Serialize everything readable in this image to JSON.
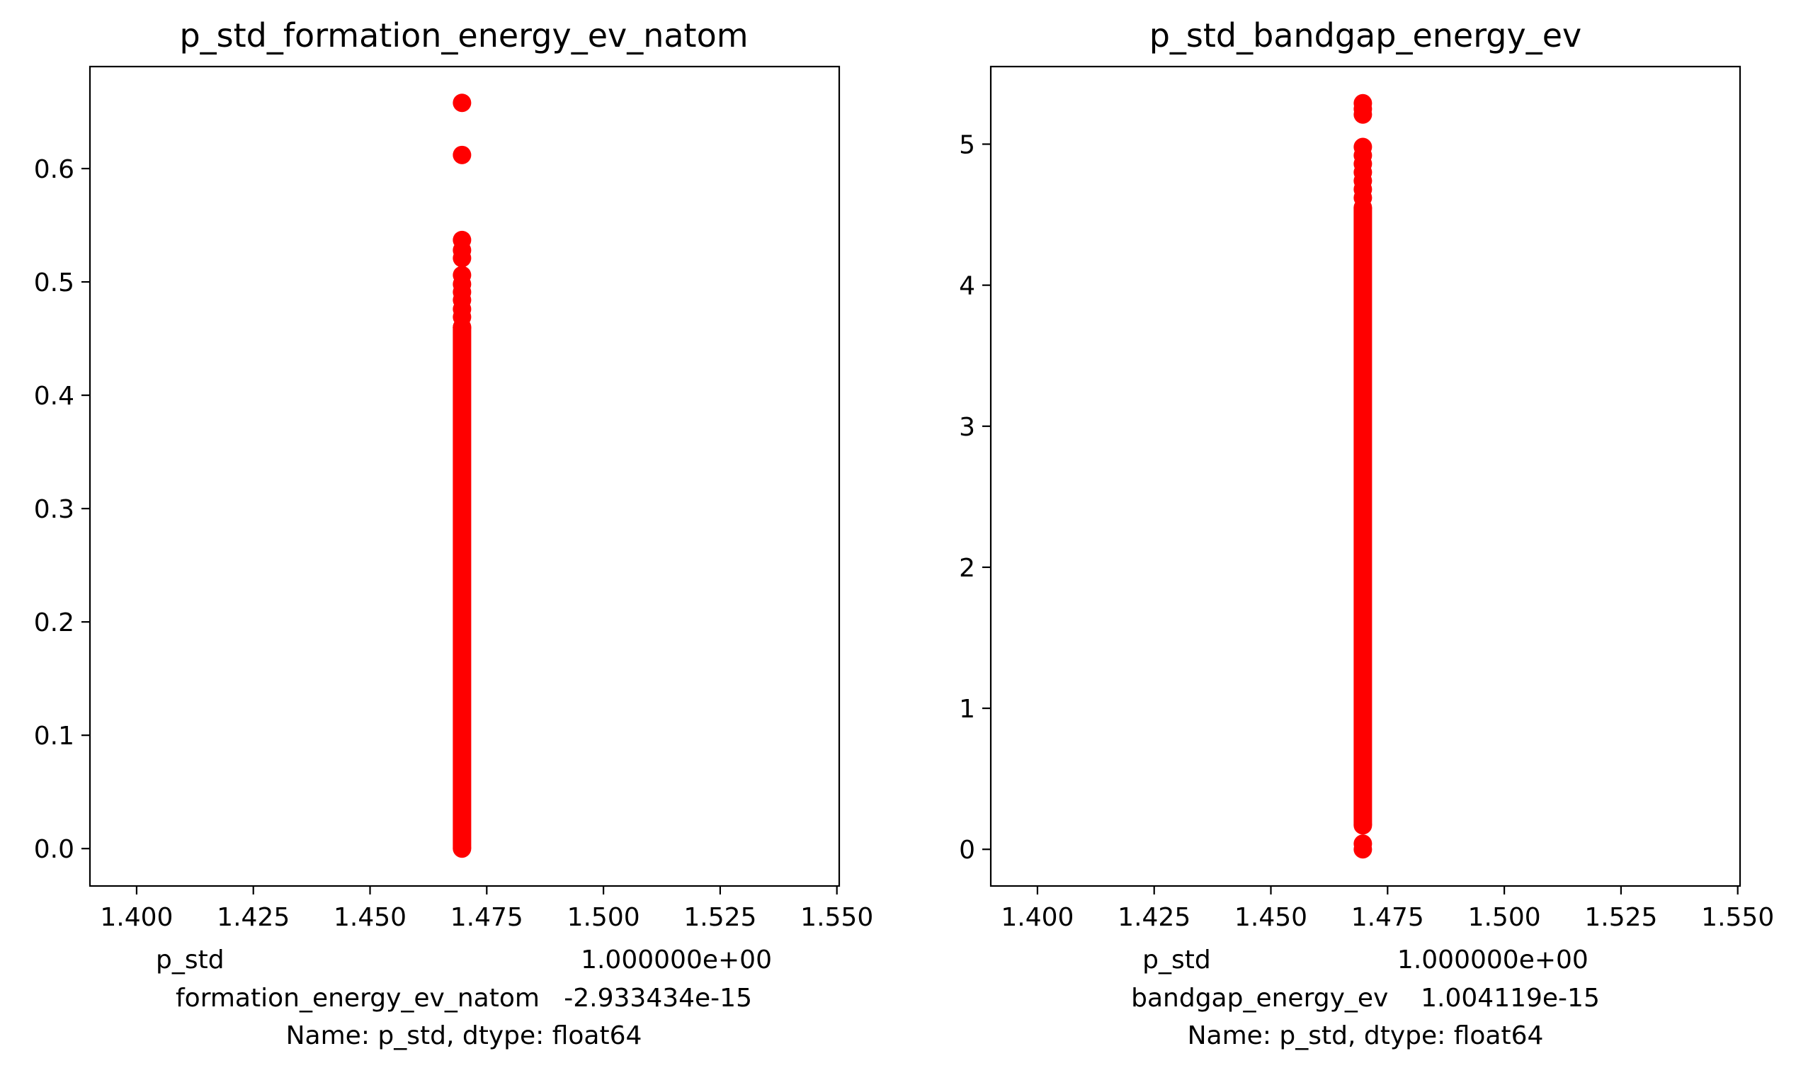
{
  "chart_data": [
    {
      "type": "scatter",
      "title": "p_std_formation_energy_ev_natom",
      "xlabel_lines": [
        "p_std                                            1.000000e+00",
        "formation_energy_ev_natom   -2.933434e-15",
        "Name: p_std, dtype: float64"
      ],
      "xlim": [
        1.39,
        1.5505
      ],
      "ylim": [
        -0.033,
        0.69
      ],
      "xticks": [
        1.4,
        1.425,
        1.45,
        1.475,
        1.5,
        1.525,
        1.55
      ],
      "xtick_labels": [
        "1.400",
        "1.425",
        "1.450",
        "1.475",
        "1.500",
        "1.525",
        "1.550"
      ],
      "yticks": [
        0.0,
        0.1,
        0.2,
        0.3,
        0.4,
        0.5,
        0.6
      ],
      "ytick_labels": [
        "0.0",
        "0.1",
        "0.2",
        "0.3",
        "0.4",
        "0.5",
        "0.6"
      ],
      "marker_color": "#ff0000",
      "x_value": 1.4697,
      "dense_range": [
        0.0,
        0.46
      ],
      "y_values": [
        0.658,
        0.612,
        0.537,
        0.528,
        0.521,
        0.506,
        0.498,
        0.491,
        0.484,
        0.476,
        0.469,
        0.46
      ]
    },
    {
      "type": "scatter",
      "title": "p_std_bandgap_energy_ev",
      "xlabel_lines": [
        "p_std                       1.000000e+00",
        "bandgap_energy_ev    1.004119e-15",
        "Name: p_std, dtype: float64"
      ],
      "xlim": [
        1.39,
        1.5505
      ],
      "ylim": [
        -0.26,
        5.55
      ],
      "xticks": [
        1.4,
        1.425,
        1.45,
        1.475,
        1.5,
        1.525,
        1.55
      ],
      "xtick_labels": [
        "1.400",
        "1.425",
        "1.450",
        "1.475",
        "1.500",
        "1.525",
        "1.550"
      ],
      "yticks": [
        0,
        1,
        2,
        3,
        4,
        5
      ],
      "ytick_labels": [
        "0",
        "1",
        "2",
        "3",
        "4",
        "5"
      ],
      "marker_color": "#ff0000",
      "x_value": 1.4697,
      "dense_range": [
        0.17,
        4.55
      ],
      "y_values": [
        5.29,
        5.25,
        5.21,
        4.98,
        4.92,
        4.86,
        4.8,
        4.74,
        4.68,
        4.62,
        0.04,
        0.0
      ]
    }
  ]
}
